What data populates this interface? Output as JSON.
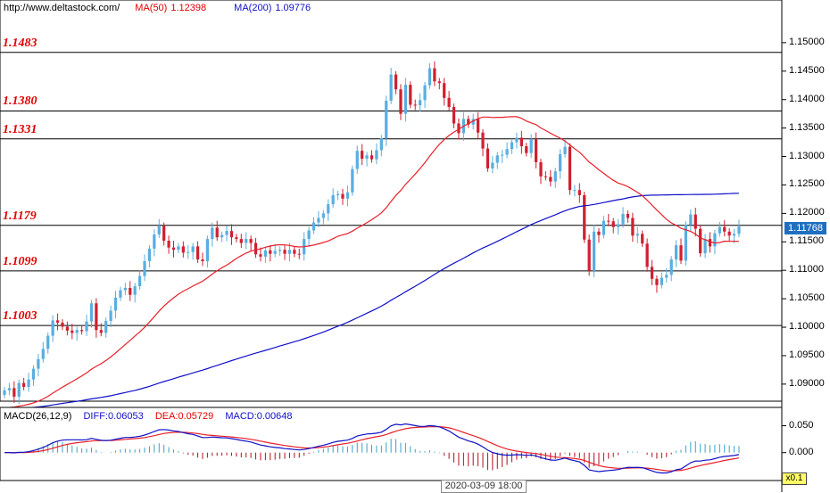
{
  "header": {
    "site": "http://www.deltastock.com/",
    "ma50_label": "MA(50)",
    "ma50_value": "1.12398",
    "ma200_label": "MA(200)",
    "ma200_value": "1.09776"
  },
  "macd_header": {
    "name": "MACD(26,12,9)",
    "diff": "DIFF:0.06053",
    "dea": "DEA:0.05729",
    "macd": "MACD:0.00648"
  },
  "current_price": "1.11768",
  "time_label": "2020-03-09 18:00",
  "zoom_label": "x0.1",
  "colors": {
    "up": "#5aaee0",
    "down": "#d02030",
    "ma50": "#e8202a",
    "ma200": "#1010c8",
    "level_text": "#e00000",
    "macd_diff": "#1010c8",
    "macd_dea": "#e8202a",
    "hist_pos": "#3aa0c8",
    "hist_neg": "#b01020"
  },
  "chart_data": {
    "type": "candlestick",
    "y_axis": {
      "ticks": [
        "1.15000",
        "1.14500",
        "1.14000",
        "1.13500",
        "1.13000",
        "1.12500",
        "1.12000",
        "1.11500",
        "1.11000",
        "1.10500",
        "1.10000",
        "1.09500",
        "1.09000"
      ],
      "ylim": [
        1.087,
        1.1575
      ]
    },
    "levels": [
      "1.1483",
      "1.1380",
      "1.1331",
      "1.1179",
      "1.1099",
      "1.1003"
    ],
    "macd_axis": {
      "ticks": [
        "0.050",
        "0.000"
      ]
    },
    "closes": [
      1.0889,
      1.0893,
      1.0878,
      1.0902,
      1.0895,
      1.0908,
      1.0927,
      1.0944,
      1.0962,
      1.0985,
      1.1012,
      1.1008,
      1.1001,
      1.0994,
      1.099,
      1.0995,
      1.0993,
      1.101,
      1.1042,
      1.0995,
      1.099,
      1.1011,
      1.1029,
      1.1052,
      1.1065,
      1.1069,
      1.1057,
      1.1072,
      1.109,
      1.1116,
      1.1138,
      1.1163,
      1.1178,
      1.1152,
      1.114,
      1.1136,
      1.1142,
      1.1131,
      1.1132,
      1.1142,
      1.1119,
      1.1116,
      1.1155,
      1.1175,
      1.1158,
      1.1162,
      1.1169,
      1.1158,
      1.1155,
      1.1148,
      1.1155,
      1.1148,
      1.1128,
      1.1124,
      1.1135,
      1.1129,
      1.1134,
      1.1136,
      1.1129,
      1.1136,
      1.1129,
      1.1128,
      1.1155,
      1.117,
      1.1184,
      1.1192,
      1.12,
      1.1216,
      1.1232,
      1.1234,
      1.1226,
      1.1237,
      1.1278,
      1.131,
      1.1296,
      1.1302,
      1.1295,
      1.1311,
      1.1332,
      1.1398,
      1.1444,
      1.1418,
      1.1375,
      1.1426,
      1.1391,
      1.139,
      1.1399,
      1.1425,
      1.1455,
      1.1432,
      1.1429,
      1.1403,
      1.1387,
      1.1358,
      1.1341,
      1.1366,
      1.1356,
      1.1366,
      1.1342,
      1.1314,
      1.1279,
      1.1289,
      1.1302,
      1.1303,
      1.1313,
      1.1325,
      1.1333,
      1.1318,
      1.1306,
      1.133,
      1.129,
      1.1265,
      1.1264,
      1.1256,
      1.1274,
      1.1304,
      1.1317,
      1.1241,
      1.1241,
      1.1232,
      1.1154,
      1.1099,
      1.1168,
      1.1162,
      1.1187,
      1.1186,
      1.1176,
      1.1181,
      1.1199,
      1.1192,
      1.1161,
      1.1164,
      1.1147,
      1.1106,
      1.1085,
      1.1074,
      1.1087,
      1.1092,
      1.1119,
      1.1144,
      1.1117,
      1.118,
      1.1198,
      1.1173,
      1.113,
      1.1155,
      1.1142,
      1.1165,
      1.1176,
      1.1168,
      1.1161,
      1.1164,
      1.1177
    ]
  }
}
